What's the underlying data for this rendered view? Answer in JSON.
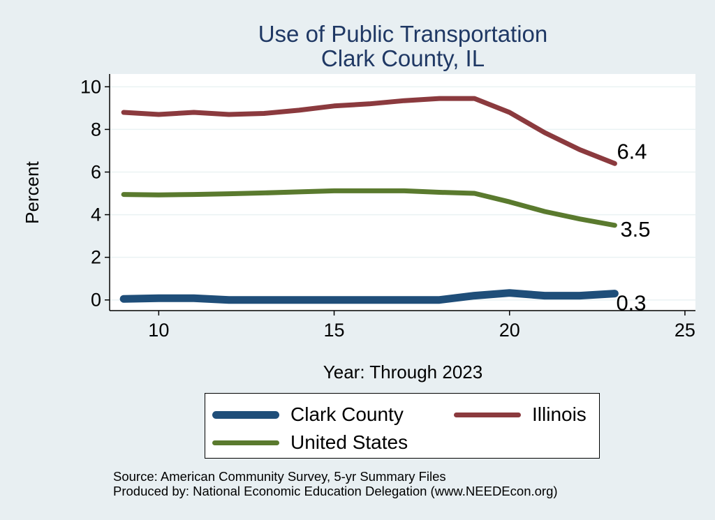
{
  "chart_data": {
    "type": "line",
    "title": "Use of Public Transportation",
    "subtitle": "Clark County, IL",
    "xlabel": "Year: Through 2023",
    "ylabel": "Percent",
    "xlim": [
      8.6,
      25.3
    ],
    "ylim": [
      -0.5,
      10.6
    ],
    "xticks": [
      10,
      15,
      20,
      25
    ],
    "yticks": [
      0,
      2,
      4,
      6,
      8,
      10
    ],
    "grid": true,
    "legend_position": "bottom",
    "x": [
      9,
      10,
      11,
      12,
      13,
      14,
      15,
      16,
      17,
      18,
      19,
      20,
      21,
      22,
      23
    ],
    "series": [
      {
        "name": "Clark County",
        "color": "#1f4e79",
        "width": 11,
        "values": [
          0.05,
          0.08,
          0.08,
          0.0,
          0.0,
          0.0,
          0.0,
          0.0,
          0.0,
          0.0,
          0.2,
          0.33,
          0.2,
          0.2,
          0.3
        ],
        "end_label": "0.3"
      },
      {
        "name": "Illinois",
        "color": "#8b3a3e",
        "width": 7,
        "values": [
          8.8,
          8.7,
          8.8,
          8.7,
          8.75,
          8.9,
          9.1,
          9.2,
          9.35,
          9.45,
          9.45,
          8.8,
          7.85,
          7.05,
          6.4
        ],
        "end_label": "6.4"
      },
      {
        "name": "United States",
        "color": "#5a7a2e",
        "width": 7,
        "values": [
          4.95,
          4.93,
          4.95,
          4.98,
          5.02,
          5.07,
          5.12,
          5.12,
          5.12,
          5.05,
          5.0,
          4.6,
          4.15,
          3.8,
          3.5
        ],
        "end_label": "3.5"
      }
    ]
  },
  "source": {
    "line1": "Source: American Community Survey, 5-yr Summary Files",
    "line2": "Produced by: National Economic Education Delegation (www.NEEDEcon.org)"
  }
}
